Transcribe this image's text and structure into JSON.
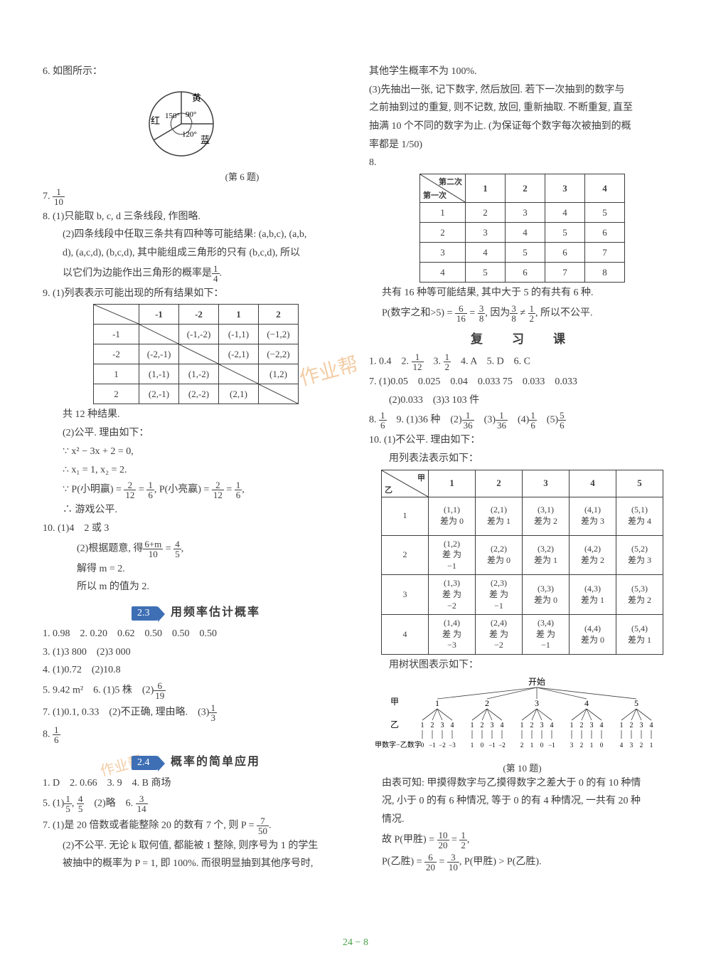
{
  "left": {
    "q6": "6. 如图所示：",
    "pie": {
      "labels": {
        "yellow": "黄",
        "red": "红",
        "blue": "蓝"
      },
      "angles": {
        "a90": "90°",
        "a150": "150°",
        "a120": "120°"
      },
      "caption": "(第 6 题)",
      "colors": {
        "stroke": "#3d3d3d",
        "fill": "none"
      }
    },
    "q7_pre": "7. ",
    "q7_num": "1",
    "q7_den": "10",
    "q8a": "8. (1)只能取 b, c, d 三条线段, 作图略.",
    "q8b": "(2)四条线段中任取三条共有四种等可能结果: (a,b,c), (a,b,",
    "q8c": "d), (a,c,d), (b,c,d), 其中能组成三角形的只有 (b,c,d), 所以",
    "q8d_pre": "以它们为边能作出三角形的概率是",
    "q8d_num": "1",
    "q8d_den": "4",
    "q8d_suf": ".",
    "q9a": "9. (1)列表表示可能出现的所有结果如下：",
    "t1": {
      "head": [
        "",
        "-1",
        "-2",
        "1",
        "2"
      ],
      "rows": [
        [
          "-1",
          "",
          "(-1,-2)",
          "(-1,1)",
          "(−1,2)"
        ],
        [
          "-2",
          "(-2,-1)",
          "",
          "(-2,1)",
          "(−2,2)"
        ],
        [
          "1",
          "(1,-1)",
          "(1,-2)",
          "",
          "(1,2)"
        ],
        [
          "2",
          "(2,-1)",
          "(2,-2)",
          "(2,1)",
          ""
        ]
      ]
    },
    "q9b": "共 12 种结果.",
    "q9c": "(2)公平. 理由如下：",
    "q9d": "∵ x² − 3x + 2 = 0,",
    "q9e": "∴ x₁ = 1, x₂ = 2.",
    "q9f_pre": "∵ P(小明赢) = ",
    "q9f_n1": "2",
    "q9f_d1": "12",
    "q9f_mid": " = ",
    "q9f_n2": "1",
    "q9f_d2": "6",
    "q9f_mid2": ", P(小亮赢) = ",
    "q9f_n3": "2",
    "q9f_d3": "12",
    "q9f_mid3": " = ",
    "q9f_n4": "1",
    "q9f_d4": "6",
    "q9f_suf": ",",
    "q9g": "∴ 游戏公平.",
    "q10a": "10. (1)4　2 或 3",
    "q10b_pre": "(2)根据题意, 得",
    "q10b_n": "6+m",
    "q10b_d": "10",
    "q10b_mid": " = ",
    "q10b_n2": "4",
    "q10b_d2": "5",
    "q10b_suf": ",",
    "q10c": "解得 m = 2.",
    "q10d": "所以 m 的值为 2.",
    "sec23_badge": "2.3",
    "sec23_title": "用频率估计概率",
    "s23_1": "1. 0.98　2. 0.20　0.62　0.50　0.50　0.50",
    "s23_3": "3. (1)3 800　(2)3 000",
    "s23_4": "4. (1)0.72　(2)10.8",
    "s23_5_pre": "5. 9.42 m²　6. (1)5 株　(2)",
    "s23_5_n": "6",
    "s23_5_d": "19",
    "s23_7_pre": "7. (1)0.1, 0.33　(2)不正确, 理由略.　(3)",
    "s23_7_n": "1",
    "s23_7_d": "3",
    "s23_8_pre": "8. ",
    "s23_8_n": "1",
    "s23_8_d": "6",
    "sec24_badge": "2.4",
    "sec24_title": "概率的简单应用",
    "s24_1": "1. D　2. 0.66　3. 9　4. B 商场",
    "s24_5_pre": "5. (1)",
    "s24_5_n1": "1",
    "s24_5_d1": "5",
    "s24_5_mid": ", ",
    "s24_5_n2": "4",
    "s24_5_d2": "5",
    "s24_5_mid2": "　(2)略　6. ",
    "s24_5_n3": "3",
    "s24_5_d3": "14",
    "s24_7_pre": "7. (1)是 20 倍数或者能整除 20 的数有 7 个, 则 P = ",
    "s24_7_n": "7",
    "s24_7_d": "50",
    "s24_7_suf": ".",
    "s24_7b": "(2)不公平. 无论 k 取何值, 都能被 1 整除, 则序号为 1 的学生",
    "s24_7c": "被抽中的概率为 P = 1, 即 100%. 而很明显抽到其他序号时,"
  },
  "right": {
    "r_top1": "其他学生概率不为 100%.",
    "r_top2": "(3)先抽出一张, 记下数字, 然后放回. 若下一次抽到的数字与",
    "r_top3": "之前抽到过的重复, 则不记数, 放回, 重新抽取. 不断重复, 直至",
    "r_top4": "抽满 10 个不同的数字为止. (为保证每个数字每次被抽到的概",
    "r_top5": "率都是 1/50)",
    "r8": "8.",
    "t2": {
      "diag_tl": "第二次",
      "diag_br": "第一次",
      "head": [
        "1",
        "2",
        "3",
        "4"
      ],
      "rows": [
        [
          "1",
          "2",
          "3",
          "4",
          "5"
        ],
        [
          "2",
          "3",
          "4",
          "5",
          "6"
        ],
        [
          "3",
          "4",
          "5",
          "6",
          "7"
        ],
        [
          "4",
          "5",
          "6",
          "7",
          "8"
        ]
      ]
    },
    "r8b": "共有 16 种等可能结果, 其中大于 5 的有共有 6 种.",
    "r8c_pre": "P(数字之和>5) = ",
    "r8c_n1": "6",
    "r8c_d1": "16",
    "r8c_m1": " = ",
    "r8c_n2": "3",
    "r8c_d2": "8",
    "r8c_m2": ", 因为",
    "r8c_n3": "3",
    "r8c_d3": "8",
    "r8c_ne": " ≠ ",
    "r8c_n4": "1",
    "r8c_d4": "2",
    "r8c_suf": ", 所以不公平.",
    "review": "复　习　课",
    "rv1_pre": "1. 0.4　2. ",
    "rv1_n1": "1",
    "rv1_d1": "12",
    "rv1_m1": "　3. ",
    "rv1_n2": "1",
    "rv1_d2": "2",
    "rv1_suf": "　4. A　5. D　6. C",
    "rv7": "7. (1)0.05　0.025　0.04　0.033 75　0.033　0.033",
    "rv7b": "(2)0.033　(3)3 103 件",
    "rv8_pre": "8. ",
    "rv8_n": "1",
    "rv8_d": "6",
    "rv8_m": "　9. (1)36 种　(2)",
    "rv8_n2": "1",
    "rv8_d2": "36",
    "rv8_m2": "　(3)",
    "rv8_n3": "1",
    "rv8_d3": "36",
    "rv8_m3": "　(4)",
    "rv8_n4": "1",
    "rv8_d4": "6",
    "rv8_m4": "　(5)",
    "rv8_n5": "5",
    "rv8_d5": "6",
    "r10a": "10. (1)不公平. 理由如下：",
    "r10b": "用列表法表示如下：",
    "t3": {
      "diag_tl": "甲",
      "diag_br": "乙",
      "head": [
        "1",
        "2",
        "3",
        "4",
        "5"
      ],
      "rows": [
        [
          "1",
          [
            "(1,1)",
            "差为 0"
          ],
          [
            "(2,1)",
            "差为 1"
          ],
          [
            "(3,1)",
            "差为 2"
          ],
          [
            "(4,1)",
            "差为 3"
          ],
          [
            "(5,1)",
            "差为 4"
          ]
        ],
        [
          "2",
          [
            "(1,2)",
            "差 为",
            "−1"
          ],
          [
            "(2,2)",
            "差为 0"
          ],
          [
            "(3,2)",
            "差为 1"
          ],
          [
            "(4,2)",
            "差为 2"
          ],
          [
            "(5,2)",
            "差为 3"
          ]
        ],
        [
          "3",
          [
            "(1,3)",
            "差 为",
            "−2"
          ],
          [
            "(2,3)",
            "差 为",
            "−1"
          ],
          [
            "(3,3)",
            "差为 0"
          ],
          [
            "(4,3)",
            "差为 1"
          ],
          [
            "(5,3)",
            "差为 2"
          ]
        ],
        [
          "4",
          [
            "(1,4)",
            "差 为",
            "−3"
          ],
          [
            "(2,4)",
            "差 为",
            "−2"
          ],
          [
            "(3,4)",
            "差 为",
            "−1"
          ],
          [
            "(4,4)",
            "差为 0"
          ],
          [
            "(5,4)",
            "差为 1"
          ]
        ]
      ]
    },
    "r10c": "用树状图表示如下：",
    "tree": {
      "start": "开始",
      "jia": "甲",
      "yi": "乙",
      "lab": "甲数字−乙数字",
      "top": [
        "1",
        "2",
        "3",
        "4",
        "5"
      ],
      "midGroups": [
        [
          "1",
          "2",
          "3",
          "4"
        ],
        [
          "1",
          "2",
          "3",
          "4"
        ],
        [
          "1",
          "2",
          "3",
          "4"
        ],
        [
          "1",
          "2",
          "3",
          "4"
        ],
        [
          "1",
          "2",
          "3",
          "4"
        ]
      ],
      "botGroups": [
        [
          "0",
          "−1",
          "−2",
          "−3"
        ],
        [
          "1",
          "0",
          "−1",
          "−2"
        ],
        [
          "2",
          "1",
          "0",
          "−1"
        ],
        [
          "3",
          "2",
          "1",
          "0"
        ],
        [
          "4",
          "3",
          "2",
          "1"
        ]
      ],
      "caption": "(第 10 题)"
    },
    "r10d": "由表可知: 甲摸得数字与乙摸得数字之差大于 0 的有 10 种情",
    "r10e": "况, 小于 0 的有 6 种情况, 等于 0 的有 4 种情况, 一共有 20 种",
    "r10f": "情况.",
    "r10g_pre": "故 P(甲胜) = ",
    "r10g_n1": "10",
    "r10g_d1": "20",
    "r10g_m": " = ",
    "r10g_n2": "1",
    "r10g_d2": "2",
    "r10g_suf": ",",
    "r10h_pre": "P(乙胜) = ",
    "r10h_n1": "6",
    "r10h_d1": "20",
    "r10h_m": " = ",
    "r10h_n2": "3",
    "r10h_d2": "10",
    "r10h_suf": ", P(甲胜) > P(乙胜)."
  },
  "pagenum": "24 − 8"
}
